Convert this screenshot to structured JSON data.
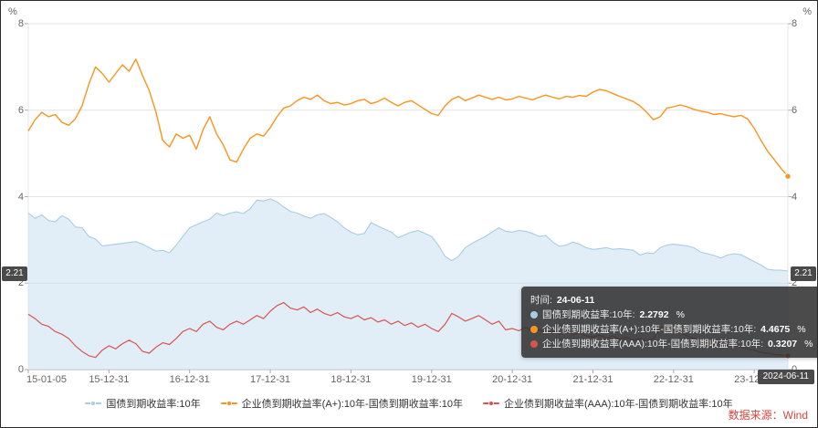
{
  "chart_data": {
    "type": "line",
    "title": "",
    "y_axis": {
      "unit": "%",
      "min": 0,
      "max": 8,
      "ticks": [
        0,
        2,
        4,
        6,
        8
      ]
    },
    "x_max": 113,
    "x_ticks": [
      {
        "label": "15-01-05",
        "t": 0
      },
      {
        "label": "15-12-31",
        "t": 12
      },
      {
        "label": "16-12-31",
        "t": 24
      },
      {
        "label": "17-12-31",
        "t": 36
      },
      {
        "label": "18-12-31",
        "t": 48
      },
      {
        "label": "19-12-31",
        "t": 60
      },
      {
        "label": "20-12-31",
        "t": 72
      },
      {
        "label": "21-12-31",
        "t": 84
      },
      {
        "label": "22-12-31",
        "t": 96
      },
      {
        "label": "23-12-31",
        "t": 108
      }
    ],
    "series": [
      {
        "name": "国债到期收益率:10年",
        "color": "#a9cce3",
        "area": true,
        "area_color": "rgba(196,221,240,0.5)",
        "width": 1.1,
        "end_dot": false,
        "values": [
          3.62,
          3.5,
          3.58,
          3.45,
          3.42,
          3.56,
          3.48,
          3.3,
          3.28,
          3.08,
          3.02,
          2.86,
          2.88,
          2.9,
          2.92,
          2.94,
          2.96,
          2.9,
          2.82,
          2.74,
          2.76,
          2.7,
          2.88,
          3.08,
          3.28,
          3.35,
          3.42,
          3.48,
          3.62,
          3.56,
          3.62,
          3.65,
          3.61,
          3.72,
          3.92,
          3.9,
          3.95,
          3.88,
          3.76,
          3.66,
          3.62,
          3.55,
          3.5,
          3.58,
          3.61,
          3.52,
          3.42,
          3.28,
          3.18,
          3.12,
          3.15,
          3.4,
          3.32,
          3.25,
          3.18,
          3.05,
          3.12,
          3.18,
          3.22,
          3.15,
          3.08,
          2.88,
          2.62,
          2.52,
          2.62,
          2.82,
          2.92,
          3.0,
          3.08,
          3.18,
          3.28,
          3.2,
          3.18,
          3.22,
          3.2,
          3.15,
          3.08,
          3.1,
          2.95,
          2.85,
          2.88,
          2.95,
          2.9,
          2.82,
          2.78,
          2.8,
          2.82,
          2.78,
          2.8,
          2.78,
          2.76,
          2.65,
          2.7,
          2.68,
          2.82,
          2.88,
          2.9,
          2.88,
          2.86,
          2.82,
          2.72,
          2.68,
          2.64,
          2.58,
          2.65,
          2.68,
          2.66,
          2.58,
          2.5,
          2.42,
          2.32,
          2.3,
          2.3,
          2.28
        ]
      },
      {
        "name": "企业债到期收益率(A+):10年-国债到期收益率:10年",
        "color": "#f9941f",
        "area": false,
        "width": 1.4,
        "end_dot": true,
        "values": [
          5.52,
          5.78,
          5.95,
          5.85,
          5.9,
          5.72,
          5.65,
          5.8,
          6.1,
          6.6,
          7.0,
          6.85,
          6.65,
          6.85,
          7.05,
          6.9,
          7.18,
          6.8,
          6.45,
          5.95,
          5.3,
          5.15,
          5.45,
          5.35,
          5.42,
          5.1,
          5.55,
          5.85,
          5.45,
          5.2,
          4.85,
          4.8,
          5.1,
          5.35,
          5.45,
          5.4,
          5.6,
          5.85,
          6.05,
          6.1,
          6.22,
          6.3,
          6.25,
          6.35,
          6.22,
          6.15,
          6.18,
          6.12,
          6.15,
          6.22,
          6.25,
          6.15,
          6.2,
          6.28,
          6.18,
          6.1,
          6.18,
          6.22,
          6.12,
          6.02,
          5.92,
          5.88,
          6.1,
          6.25,
          6.32,
          6.22,
          6.28,
          6.35,
          6.3,
          6.25,
          6.3,
          6.24,
          6.26,
          6.32,
          6.28,
          6.24,
          6.3,
          6.35,
          6.3,
          6.26,
          6.32,
          6.3,
          6.34,
          6.32,
          6.42,
          6.48,
          6.45,
          6.38,
          6.32,
          6.26,
          6.2,
          6.1,
          5.95,
          5.78,
          5.85,
          6.05,
          6.08,
          6.12,
          6.08,
          6.02,
          5.98,
          5.95,
          5.9,
          5.92,
          5.88,
          5.85,
          5.88,
          5.8,
          5.58,
          5.3,
          5.05,
          4.85,
          4.65,
          4.47
        ]
      },
      {
        "name": "企业债到期收益率(AAA):10年-国债到期收益率:10年",
        "color": "#d9544f",
        "area": false,
        "width": 1.2,
        "end_dot": true,
        "values": [
          1.28,
          1.18,
          1.05,
          1.0,
          0.88,
          0.82,
          0.72,
          0.55,
          0.42,
          0.32,
          0.28,
          0.45,
          0.55,
          0.48,
          0.6,
          0.68,
          0.6,
          0.42,
          0.38,
          0.52,
          0.62,
          0.58,
          0.72,
          0.88,
          0.95,
          0.88,
          1.05,
          1.12,
          0.98,
          0.92,
          1.05,
          1.12,
          1.05,
          1.15,
          1.25,
          1.18,
          1.35,
          1.48,
          1.55,
          1.42,
          1.38,
          1.45,
          1.32,
          1.4,
          1.3,
          1.25,
          1.32,
          1.22,
          1.18,
          1.25,
          1.15,
          1.2,
          1.1,
          1.15,
          1.05,
          1.12,
          1.02,
          1.08,
          0.98,
          1.05,
          0.95,
          0.88,
          1.05,
          1.3,
          1.22,
          1.12,
          1.18,
          1.25,
          1.15,
          1.05,
          1.12,
          0.92,
          0.95,
          0.9,
          0.98,
          0.88,
          0.92,
          0.85,
          0.9,
          0.82,
          0.88,
          0.8,
          0.85,
          0.78,
          0.75,
          0.8,
          0.72,
          0.78,
          0.7,
          0.75,
          0.68,
          0.72,
          0.65,
          0.72,
          0.95,
          1.02,
          0.92,
          0.85,
          0.78,
          0.72,
          0.68,
          0.62,
          0.58,
          0.62,
          0.55,
          0.58,
          0.52,
          0.48,
          0.45,
          0.4,
          0.38,
          0.35,
          0.34,
          0.32
        ]
      }
    ]
  },
  "axis_pointer": {
    "y_value": "2.21",
    "x_value": "2024-06-11"
  },
  "tooltip": {
    "time_label": "时间:",
    "time_value": "24-06-11",
    "rows": [
      {
        "label": "国债到期收益率:10年",
        "value": "2.2792",
        "unit": "%",
        "color": "#a9cce3"
      },
      {
        "label": "企业债到期收益率(A+):10年-国债到期收益率:10年",
        "value": "4.4675",
        "unit": "%",
        "color": "#f9941f"
      },
      {
        "label": "企业债到期收益率(AAA):10年-国债到期收益率:10年",
        "value": "0.3207",
        "unit": "%",
        "color": "#d9544f"
      }
    ]
  },
  "source": {
    "text": "数据来源：Wind",
    "color": "#d64541"
  }
}
